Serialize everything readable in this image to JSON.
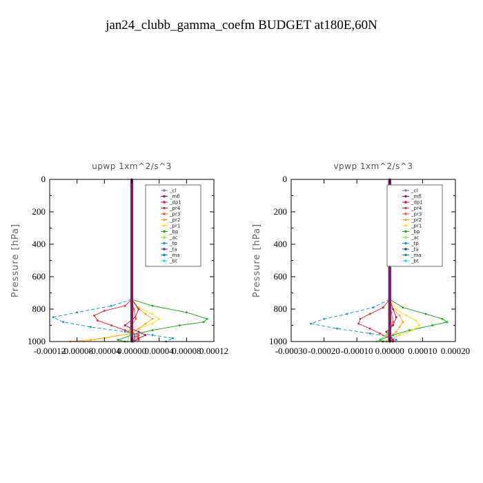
{
  "title": "jan24_clubb_gamma_coefm  BUDGET at180E,60N",
  "colors": {
    "_cl": "#9966cc",
    "_mfl": "#8b1a5a",
    "_dp1": "#cc1144",
    "_pr4": "#e0304a",
    "_pr3": "#ff5533",
    "_pr2": "#ffaa22",
    "_pr1": "#ffdd22",
    "_bp": "#22aa22",
    "_ac": "#77ee55",
    "_tp": "#2299cc",
    "_ta": "#3344aa",
    "_ma": "#1188bb",
    "_bt": "#22dddd"
  },
  "chart_data": [
    {
      "type": "line",
      "title": "upwp   1xm^2/s^3",
      "ylabel": "Pressure [hPa]",
      "xlim": [
        -0.00012,
        0.00012
      ],
      "ylim": [
        1000,
        0
      ],
      "xticks": [
        -0.00012,
        -8e-05,
        -4e-05,
        0.0,
        4e-05,
        8e-05,
        0.00012
      ],
      "xtick_labels": [
        "-0.00012",
        "-0.00008",
        "-0.00004",
        "0.00000",
        "0.00004",
        "0.00008",
        "0.00012"
      ],
      "yticks": [
        0,
        200,
        400,
        600,
        800,
        1000
      ],
      "ytick_labels": [
        "0",
        "200",
        "400",
        "600",
        "800",
        "1000"
      ],
      "legend": [
        "_cl",
        "_mfl",
        "_dp1",
        "_pr4",
        "_pr3",
        "_pr2",
        "_pr1",
        "_bp",
        "_ac",
        "_tp",
        "_ta",
        "_ma",
        "_bt"
      ],
      "legend_loc": "top-right",
      "series": [
        {
          "name": "_bp",
          "pressure": [
            740,
            780,
            820,
            860,
            880,
            900,
            930,
            960,
            990,
            1000
          ],
          "values": [
            0.0,
            3e-05,
            8e-05,
            0.00011,
            0.000105,
            7e-05,
            3e-05,
            0.0,
            -2e-05,
            -1e-05
          ]
        },
        {
          "name": "_tp",
          "pressure": [
            740,
            780,
            820,
            850,
            880,
            910,
            940,
            960,
            980,
            1000
          ],
          "values": [
            0.0,
            -3e-05,
            -8e-05,
            -0.000115,
            -0.0001,
            -6e-05,
            -1e-05,
            3e-05,
            6e-05,
            5e-05
          ]
        },
        {
          "name": "_pr4",
          "pressure": [
            740,
            780,
            810,
            840,
            870,
            900,
            930,
            960,
            990,
            1000
          ],
          "values": [
            0.0,
            -1e-05,
            -4e-05,
            -5.5e-05,
            -5e-05,
            -3e-05,
            -1e-05,
            1e-05,
            1e-05,
            0.0
          ]
        },
        {
          "name": "_pr1",
          "pressure": [
            740,
            790,
            830,
            860,
            890,
            920,
            950,
            980,
            1000
          ],
          "values": [
            0.0,
            1e-05,
            3e-05,
            4e-05,
            3e-05,
            1e-05,
            0.0,
            -4e-05,
            -7e-05
          ]
        },
        {
          "name": "_pr2",
          "pressure": [
            740,
            790,
            830,
            860,
            890,
            920,
            950,
            990,
            1000
          ],
          "values": [
            0.0,
            8e-06,
            2e-05,
            3e-05,
            2e-05,
            1e-05,
            0.0,
            -6e-05,
            -9e-05
          ]
        },
        {
          "name": "_dp1",
          "pressure": [
            740,
            800,
            850,
            900,
            940,
            960,
            980,
            1000
          ],
          "values": [
            0.0,
            1e-05,
            5e-06,
            -1e-05,
            1e-05,
            2e-05,
            1e-05,
            0.0
          ]
        },
        {
          "name": "_pr3",
          "pressure": [
            740,
            800,
            860,
            900,
            940,
            970,
            1000
          ],
          "values": [
            0.0,
            3e-06,
            6e-06,
            0.0,
            -5e-06,
            8e-06,
            0.0
          ]
        },
        {
          "name": "_ac",
          "pressure": [
            900,
            950,
            1000
          ],
          "values": [
            0.0,
            -3e-06,
            -6e-06
          ]
        },
        {
          "name": "_ma",
          "pressure": [
            940,
            970,
            1000
          ],
          "values": [
            0.0,
            4e-06,
            2e-06
          ]
        },
        {
          "name": "_bt",
          "pressure": [
            950,
            1000
          ],
          "values": [
            0.0,
            1e-06
          ]
        },
        {
          "name": "_ta",
          "pressure": [
            0,
            1000
          ],
          "values": [
            0.0,
            0.0
          ]
        },
        {
          "name": "_cl",
          "pressure": [
            0,
            1000
          ],
          "values": [
            0.0,
            0.0
          ]
        },
        {
          "name": "_mfl",
          "pressure": [
            0,
            1000
          ],
          "values": [
            0.0,
            0.0
          ]
        }
      ]
    },
    {
      "type": "line",
      "title": "vpwp   1xm^2/s^3",
      "ylabel": "Pressure [hPa]",
      "xlim": [
        -0.0003,
        0.0002
      ],
      "ylim": [
        1000,
        0
      ],
      "xticks": [
        -0.0003,
        -0.0002,
        -0.0001,
        0.0,
        0.0001,
        0.0002
      ],
      "xtick_labels": [
        "-0.00030",
        "-0.00020",
        "-0.00010",
        "0.00000",
        "0.00010",
        "0.00020"
      ],
      "yticks": [
        0,
        200,
        400,
        600,
        800,
        1000
      ],
      "ytick_labels": [
        "0",
        "200",
        "400",
        "600",
        "800",
        "1000"
      ],
      "legend": [
        "_cl",
        "_mfl",
        "_dp1",
        "_pr4",
        "_pr3",
        "_pr2",
        "_pr1",
        "_bp",
        "_ac",
        "_tp",
        "_ta",
        "_ma",
        "_bt"
      ],
      "legend_loc": "top-right",
      "series": [
        {
          "name": "_bp",
          "pressure": [
            740,
            790,
            830,
            860,
            880,
            900,
            930,
            960,
            990,
            1000
          ],
          "values": [
            0.0,
            4e-05,
            0.00011,
            0.00016,
            0.000175,
            0.00013,
            6e-05,
            1e-05,
            -3e-05,
            -2e-05
          ]
        },
        {
          "name": "_tp",
          "pressure": [
            740,
            790,
            830,
            860,
            890,
            920,
            950,
            970,
            990,
            1000
          ],
          "values": [
            0.0,
            -5e-05,
            -0.00013,
            -0.0002,
            -0.00024,
            -0.00016,
            -6e-05,
            0.0,
            2e-05,
            1e-05
          ]
        },
        {
          "name": "_pr4",
          "pressure": [
            740,
            790,
            830,
            860,
            890,
            920,
            950,
            980,
            1000
          ],
          "values": [
            0.0,
            -2e-05,
            -6e-05,
            -9e-05,
            -9.5e-05,
            -6e-05,
            -3e-05,
            0.0,
            1e-05
          ]
        },
        {
          "name": "_pr1",
          "pressure": [
            740,
            800,
            840,
            870,
            900,
            930,
            960,
            990,
            1000
          ],
          "values": [
            0.0,
            2e-05,
            5e-05,
            8e-05,
            9e-05,
            7e-05,
            3e-05,
            0.0,
            -1e-05
          ]
        },
        {
          "name": "_pr2",
          "pressure": [
            740,
            800,
            840,
            880,
            910,
            940,
            970,
            1000
          ],
          "values": [
            0.0,
            1e-05,
            3e-05,
            4e-05,
            3e-05,
            2e-05,
            0.0,
            -1e-05
          ]
        },
        {
          "name": "_dp1",
          "pressure": [
            740,
            800,
            850,
            900,
            940,
            970,
            990,
            1000
          ],
          "values": [
            0.0,
            1e-05,
            2e-05,
            1e-05,
            -1e-05,
            0.0,
            1e-05,
            0.0
          ]
        },
        {
          "name": "_pr3",
          "pressure": [
            740,
            820,
            880,
            930,
            970,
            1000
          ],
          "values": [
            0.0,
            5e-06,
            1e-05,
            0.0,
            -5e-06,
            0.0
          ]
        },
        {
          "name": "_ac",
          "pressure": [
            920,
            960,
            1000
          ],
          "values": [
            0.0,
            -1e-05,
            -4e-05
          ]
        },
        {
          "name": "_ma",
          "pressure": [
            940,
            975,
            1000
          ],
          "values": [
            0.0,
            5e-06,
            2e-06
          ]
        },
        {
          "name": "_bt",
          "pressure": [
            950,
            1000
          ],
          "values": [
            0.0,
            2e-06
          ]
        },
        {
          "name": "_ta",
          "pressure": [
            0,
            1000
          ],
          "values": [
            0.0,
            0.0
          ]
        },
        {
          "name": "_cl",
          "pressure": [
            0,
            1000
          ],
          "values": [
            0.0,
            0.0
          ]
        },
        {
          "name": "_mfl",
          "pressure": [
            0,
            1000
          ],
          "values": [
            0.0,
            0.0
          ]
        }
      ]
    }
  ]
}
